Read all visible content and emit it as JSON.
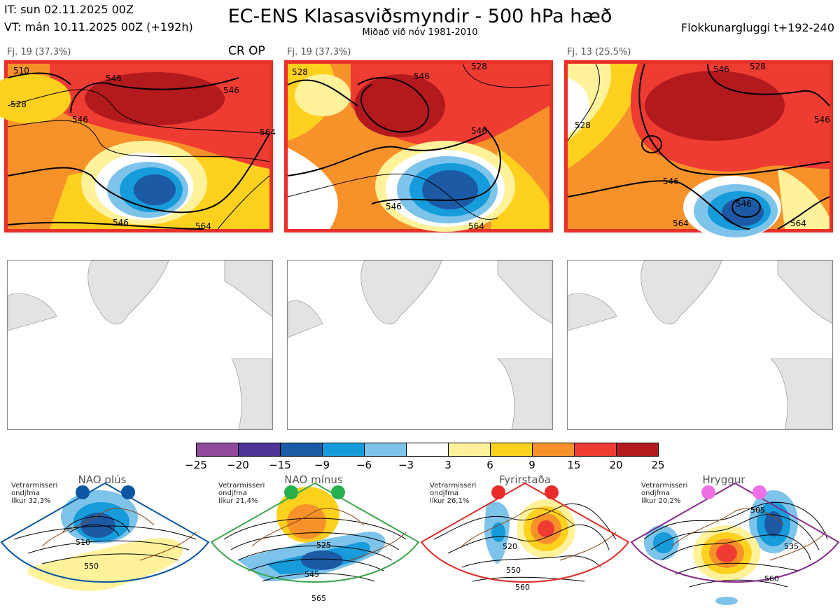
{
  "header": {
    "it_line": "IT: sun 02.11.2025 00Z",
    "vt_line": "VT: mán 10.11.2025 00Z  (+192h)",
    "title": "EC-ENS Klasasviðsmyndir - 500 hPa hæð",
    "subtitle": "Miðað við nóv 1981-2010",
    "window": "Flokkunargluggi t+192-240"
  },
  "panels": [
    {
      "label": "Fj. 19 (37.3%)",
      "tag": "CR OP",
      "contours": [
        "510",
        "528",
        "546",
        "546",
        "546",
        "564",
        "546",
        "564"
      ]
    },
    {
      "label": "Fj. 19 (37.3%)",
      "contours": [
        "528",
        "528",
        "546",
        "546",
        "546",
        "564"
      ]
    },
    {
      "label": "Fj. 13 (25.5%)",
      "contours": [
        "528",
        "546",
        "528",
        "546",
        "546",
        "546",
        "564",
        "564"
      ]
    }
  ],
  "colorbar": {
    "ticks": [
      "−25",
      "−20",
      "−15",
      "−9",
      "−6",
      "−3",
      "3",
      "6",
      "9",
      "15",
      "20",
      "25"
    ],
    "colors": [
      "#8f4a9d",
      "#4b3495",
      "#1c5aa6",
      "#169cdb",
      "#7dc3ea",
      "#ffffff",
      "#fff29b",
      "#ffd11f",
      "#f7922a",
      "#ee3c33",
      "#b31a1d"
    ]
  },
  "regimes": [
    {
      "name": "NAO plús",
      "info_line1": "Vetrarmisseri",
      "info_line2": "ondjfma",
      "info_line3": "líkur 32,3%",
      "contours": [
        "510",
        "550"
      ],
      "color": "#0b55a3",
      "dot_color": "#0b55a3"
    },
    {
      "name": "NAO mínus",
      "info_line1": "Vetrarmisseri",
      "info_line2": "ondjfma",
      "info_line3": "líkur 21,4%",
      "contours": [
        "525",
        "545",
        "565"
      ],
      "color": "#3aa64a",
      "dot_color": "#25b04b"
    },
    {
      "name": "Fyrirstaða",
      "info_line1": "Vetrarmisseri",
      "info_line2": "ondjfma",
      "info_line3": "líkur 26,1%",
      "contours": [
        "520",
        "550",
        "560"
      ],
      "color": "#e02c28",
      "dot_color": "#e92c2a"
    },
    {
      "name": "Hryggur",
      "info_line1": "Vetrarmisseri",
      "info_line2": "ondjfma",
      "info_line3": "líkur 20,2%",
      "contours": [
        "505",
        "535",
        "560"
      ],
      "color": "#8a2a8f",
      "dot_color": "#ee6fe6"
    }
  ]
}
